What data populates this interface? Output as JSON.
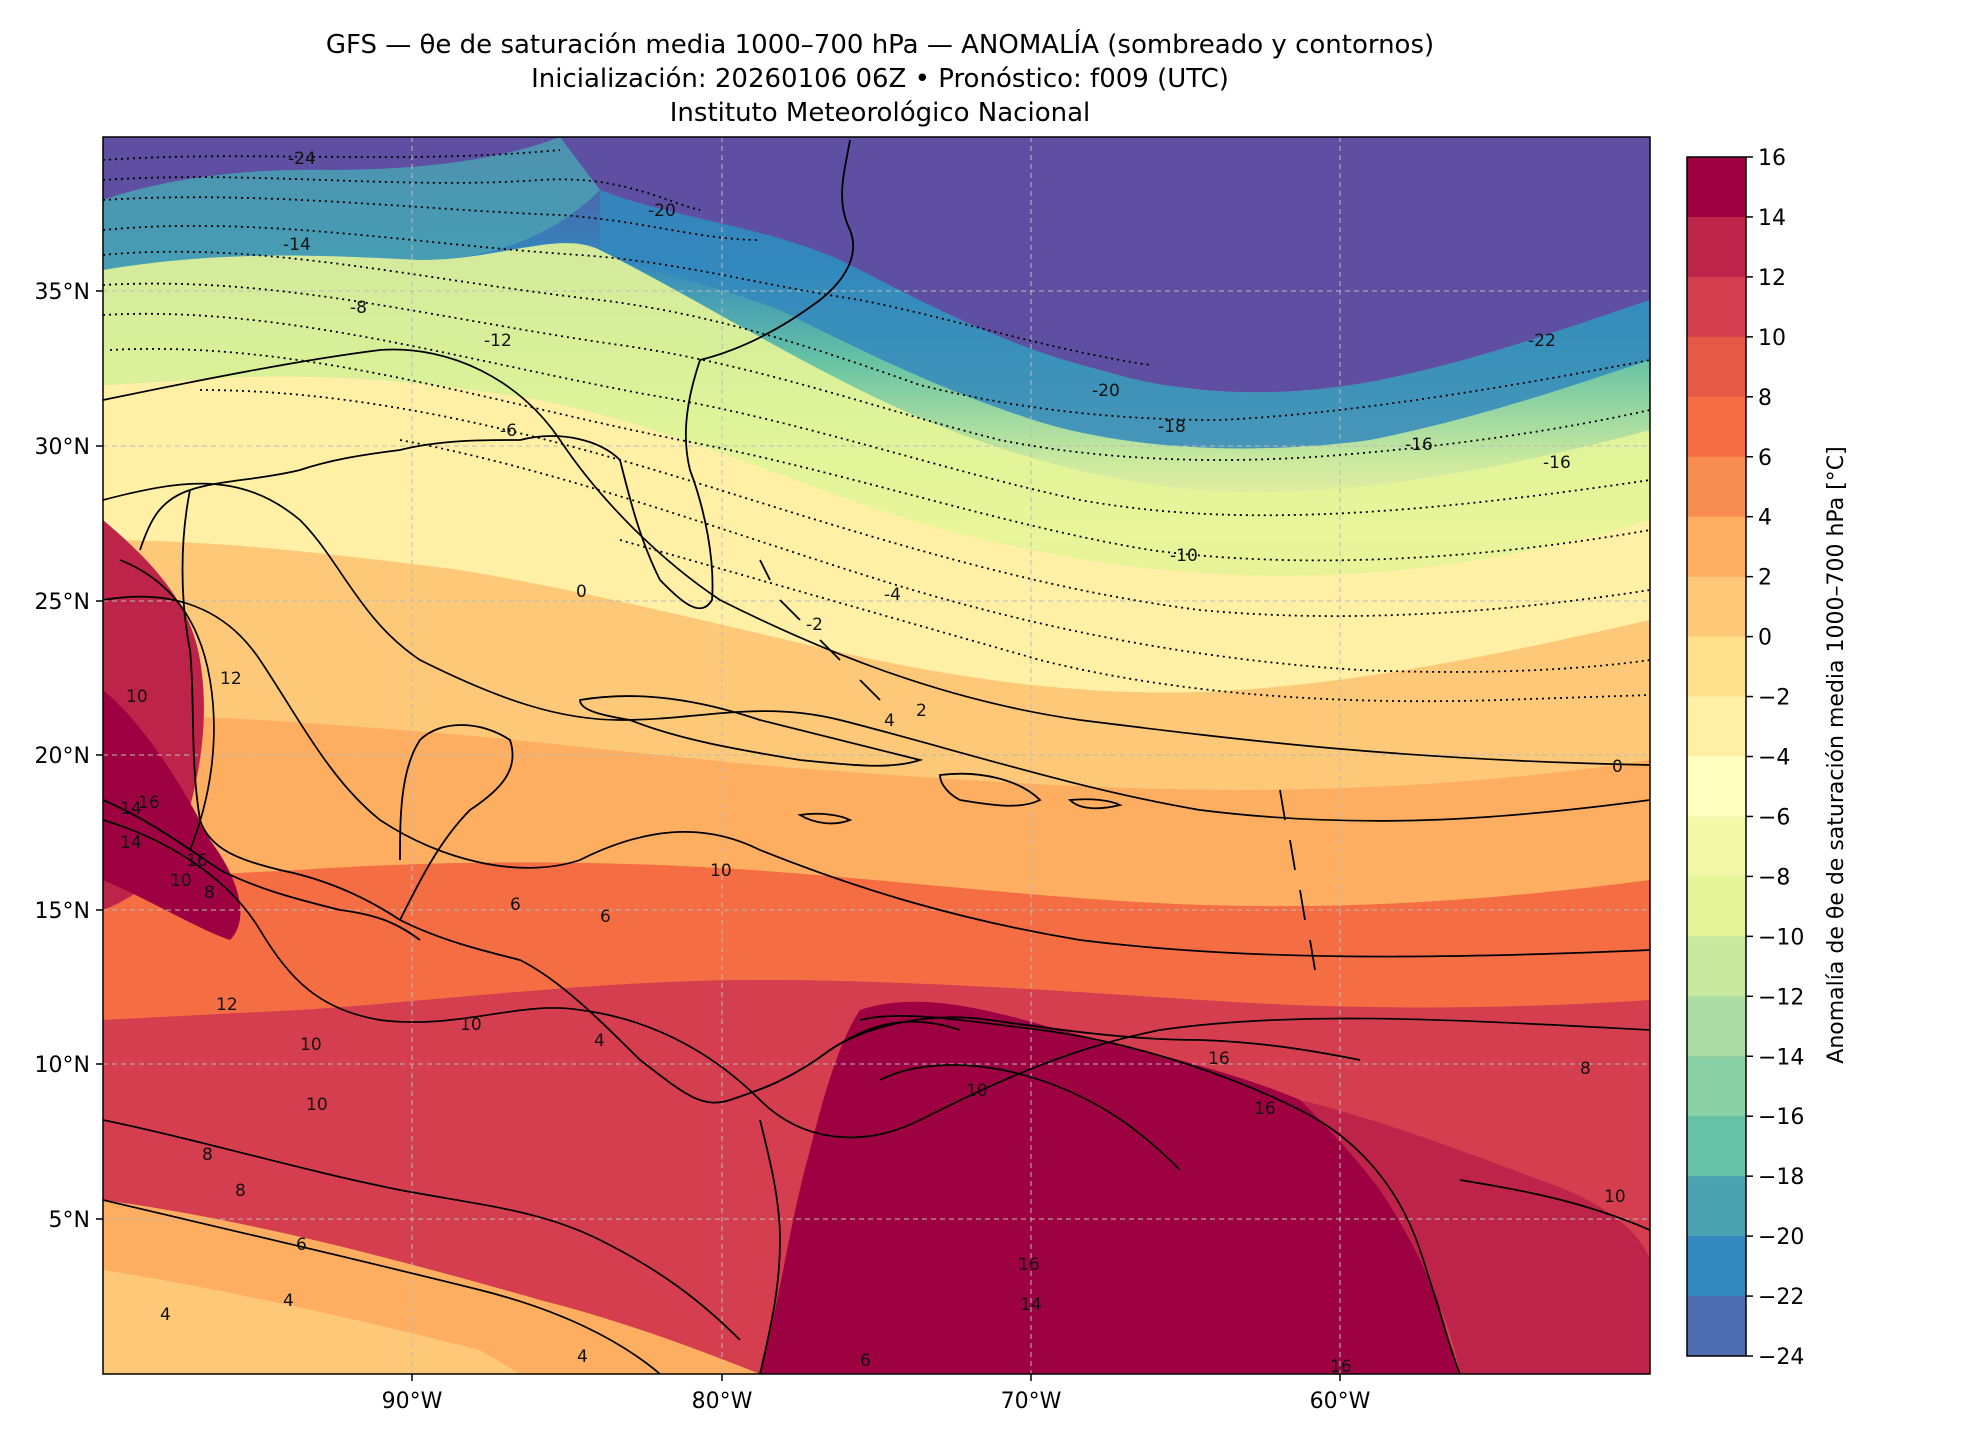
{
  "titles": {
    "line1": "GFS — θe de saturación media 1000–700 hPa — ANOMALÍA (sombreado y contornos)",
    "line2": "Inicialización: 20260106 06Z   •   Pronóstico: f009 (UTC)",
    "line3": "Instituto Meteorológico Nacional"
  },
  "map": {
    "lon_ticks": [
      "90°W",
      "80°W",
      "70°W",
      "60°W"
    ],
    "lat_ticks": [
      "35°N",
      "30°N",
      "25°N",
      "20°N",
      "15°N",
      "10°N",
      "5°N"
    ],
    "extent": {
      "lon_min": -100,
      "lon_max": -50,
      "lat_min": 0,
      "lat_max": 40
    }
  },
  "colorbar": {
    "label": "Anomalía de θe de saturación media 1000–700 hPa [°C]",
    "ticks": [
      "16",
      "14",
      "12",
      "10",
      "8",
      "6",
      "4",
      "2",
      "0",
      "−2",
      "−4",
      "−6",
      "−8",
      "−10",
      "−12",
      "−14",
      "−16",
      "−18",
      "−20",
      "−22",
      "−24"
    ],
    "colors": [
      "#9e0142",
      "#be2449",
      "#d53e4f",
      "#e55a47",
      "#f46d43",
      "#f88d52",
      "#fdae61",
      "#fdc978",
      "#fee08b",
      "#fff0a6",
      "#ffffbf",
      "#f1f9a9",
      "#e6f598",
      "#c8e99e",
      "#abdda4",
      "#89d0a4",
      "#66c2a5",
      "#4ba3b2",
      "#3288bd",
      "#4e6db1",
      "#5e4fa2"
    ]
  },
  "contour_labels": [
    "-24",
    "-20",
    "-14",
    "-8",
    "-12",
    "-6",
    "-22",
    "-20",
    "-18",
    "-16",
    "-16",
    "-10",
    "0",
    "-4",
    "-2",
    "2",
    "4",
    "0",
    "12",
    "10",
    "14",
    "16",
    "16",
    "14",
    "10",
    "8",
    "6",
    "10",
    "10",
    "10",
    "8",
    "8",
    "6",
    "4",
    "4",
    "10",
    "16",
    "16",
    "16",
    "14",
    "10",
    "8",
    "16",
    "12",
    "10",
    "4",
    "6",
    "4",
    "6"
  ]
}
